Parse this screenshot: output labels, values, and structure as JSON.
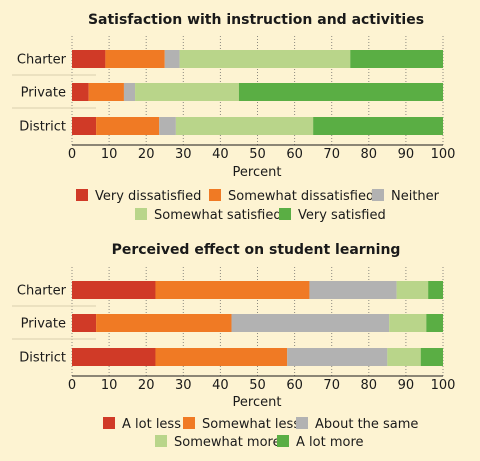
{
  "chart_data": [
    {
      "type": "bar",
      "orientation": "horizontal",
      "stacked": true,
      "title": "Satisfaction with instruction and activities",
      "xlabel": "Percent",
      "xlim": [
        0,
        100
      ],
      "xticks": [
        0,
        10,
        20,
        30,
        40,
        50,
        60,
        70,
        80,
        90,
        100
      ],
      "categories": [
        "Charter",
        "Private",
        "District"
      ],
      "series": [
        {
          "name": "Very dissatisfied",
          "color": "#d03a27",
          "values": [
            9,
            4.5,
            6.5
          ]
        },
        {
          "name": "Somewhat dissatisfied",
          "color": "#f07a24",
          "values": [
            16,
            9.5,
            17
          ]
        },
        {
          "name": "Neither",
          "color": "#b2b2b2",
          "values": [
            4,
            3,
            4.5
          ]
        },
        {
          "name": "Somewhat satisfied",
          "color": "#b9d58a",
          "values": [
            46,
            28,
            37
          ]
        },
        {
          "name": "Very satisfied",
          "color": "#5aae44",
          "values": [
            25,
            55,
            35
          ]
        }
      ],
      "legend": "bottom"
    },
    {
      "type": "bar",
      "orientation": "horizontal",
      "stacked": true,
      "title": "Perceived effect on student learning",
      "xlabel": "Percent",
      "xlim": [
        0,
        100
      ],
      "xticks": [
        0,
        10,
        20,
        30,
        40,
        50,
        60,
        70,
        80,
        90,
        100
      ],
      "categories": [
        "Charter",
        "Private",
        "District"
      ],
      "series": [
        {
          "name": "A lot less",
          "color": "#d03a27",
          "values": [
            22.5,
            6.5,
            22.5
          ]
        },
        {
          "name": "Somewhat less",
          "color": "#f07a24",
          "values": [
            41.5,
            36.5,
            35.5
          ]
        },
        {
          "name": "About the same",
          "color": "#b2b2b2",
          "values": [
            23.5,
            42.5,
            27
          ]
        },
        {
          "name": "Somewhat more",
          "color": "#b9d58a",
          "values": [
            8.5,
            10,
            9
          ]
        },
        {
          "name": "A lot more",
          "color": "#5aae44",
          "values": [
            4,
            4.5,
            6
          ]
        }
      ],
      "legend": "bottom"
    }
  ]
}
